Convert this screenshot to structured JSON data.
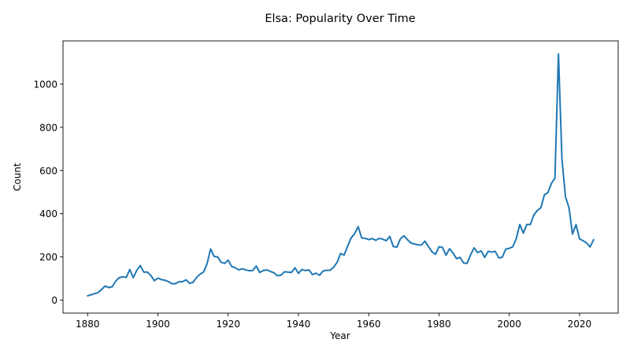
{
  "chart_data": {
    "type": "line",
    "title": "Elsa: Popularity Over Time",
    "xlabel": "Year",
    "ylabel": "Count",
    "xlim": [
      1873,
      2031
    ],
    "ylim": [
      -60,
      1200
    ],
    "xticks": [
      1880,
      1900,
      1920,
      1940,
      1960,
      1980,
      2000,
      2020
    ],
    "yticks": [
      0,
      200,
      400,
      600,
      800,
      1000
    ],
    "grid": false,
    "legend": "none",
    "color": "#1f77b4",
    "series": [
      {
        "x": [
          1880,
          1881,
          1882,
          1883,
          1884,
          1885,
          1886,
          1887,
          1888,
          1889,
          1890,
          1891,
          1892,
          1893,
          1894,
          1895,
          1896,
          1897,
          1898,
          1899,
          1900,
          1901,
          1902,
          1903,
          1904,
          1905,
          1906,
          1907,
          1908,
          1909,
          1910,
          1911,
          1912,
          1913,
          1914,
          1915,
          1916,
          1917,
          1918,
          1919,
          1920,
          1921,
          1922,
          1923,
          1924,
          1925,
          1926,
          1927,
          1928,
          1929,
          1930,
          1931,
          1932,
          1933,
          1934,
          1935,
          1936,
          1937,
          1938,
          1939,
          1940,
          1941,
          1942,
          1943,
          1944,
          1945,
          1946,
          1947,
          1948,
          1949,
          1950,
          1951,
          1952,
          1953,
          1954,
          1955,
          1956,
          1957,
          1958,
          1959,
          1960,
          1961,
          1962,
          1963,
          1964,
          1965,
          1966,
          1967,
          1968,
          1969,
          1970,
          1971,
          1972,
          1973,
          1974,
          1975,
          1976,
          1977,
          1978,
          1979,
          1980,
          1981,
          1982,
          1983,
          1984,
          1985,
          1986,
          1987,
          1988,
          1989,
          1990,
          1991,
          1992,
          1993,
          1994,
          1995,
          1996,
          1997,
          1998,
          1999,
          2000,
          2001,
          2002,
          2003,
          2004,
          2005,
          2006,
          2007,
          2008,
          2009,
          2010,
          2011,
          2012,
          2013,
          2014,
          2015,
          2016,
          2017,
          2018,
          2019,
          2020,
          2021,
          2022,
          2023,
          2024
        ],
        "y": [
          20,
          25,
          30,
          35,
          50,
          65,
          58,
          62,
          88,
          104,
          108,
          105,
          142,
          104,
          138,
          160,
          130,
          130,
          114,
          90,
          102,
          95,
          92,
          86,
          76,
          76,
          85,
          85,
          94,
          78,
          82,
          105,
          120,
          130,
          168,
          237,
          202,
          200,
          175,
          170,
          185,
          156,
          150,
          140,
          145,
          140,
          136,
          137,
          158,
          128,
          137,
          140,
          133,
          127,
          113,
          115,
          131,
          130,
          128,
          150,
          124,
          142,
          137,
          140,
          118,
          125,
          115,
          135,
          138,
          138,
          152,
          175,
          216,
          208,
          250,
          288,
          308,
          340,
          288,
          286,
          280,
          285,
          277,
          286,
          282,
          275,
          295,
          248,
          245,
          283,
          298,
          280,
          265,
          260,
          256,
          255,
          273,
          248,
          224,
          212,
          247,
          244,
          208,
          238,
          218,
          192,
          198,
          172,
          170,
          210,
          242,
          220,
          228,
          198,
          226,
          222,
          226,
          196,
          198,
          236,
          240,
          247,
          285,
          350,
          310,
          350,
          350,
          395,
          415,
          428,
          488,
          498,
          540,
          565,
          1140,
          650,
          478,
          428,
          306,
          350,
          284,
          275,
          265,
          246,
          280
        ]
      }
    ]
  }
}
